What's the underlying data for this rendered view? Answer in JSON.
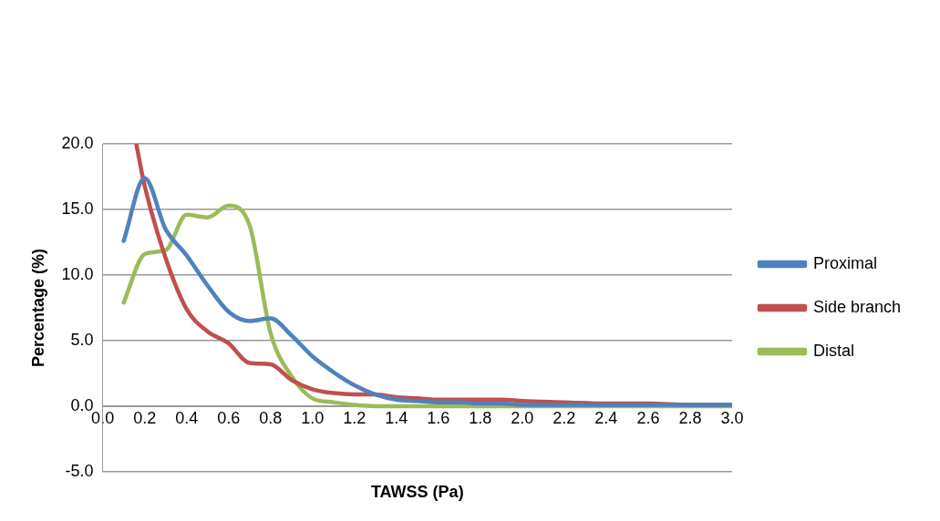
{
  "chart_data": {
    "type": "line",
    "xlabel": "TAWSS (Pa)",
    "ylabel": "Percentage (%)",
    "x": [
      0.1,
      0.2,
      0.3,
      0.4,
      0.5,
      0.6,
      0.7,
      0.8,
      0.9,
      1.0,
      1.1,
      1.2,
      1.3,
      1.4,
      1.5,
      1.6,
      1.7,
      1.8,
      1.9,
      2.0,
      2.2,
      2.4,
      2.6,
      2.8,
      3.0
    ],
    "series": [
      {
        "name": "Proximal",
        "color": "#4f81bd",
        "values": [
          12.6,
          17.4,
          13.5,
          11.5,
          9.2,
          7.2,
          6.5,
          6.7,
          5.4,
          3.8,
          2.6,
          1.6,
          0.9,
          0.5,
          0.4,
          0.3,
          0.3,
          0.2,
          0.2,
          0.1,
          0.1,
          0.1,
          0.1,
          0.1,
          0.1
        ]
      },
      {
        "name": "Side branch",
        "color": "#c0504d",
        "x": [
          0.16,
          0.2,
          0.3,
          0.4,
          0.5,
          0.6,
          0.7,
          0.8,
          0.9,
          1.0,
          1.1,
          1.2,
          1.3,
          1.4,
          1.5,
          1.6,
          1.7,
          1.8,
          1.9,
          2.0,
          2.2,
          2.4,
          2.6,
          2.8,
          3.0
        ],
        "values": [
          20,
          16.8,
          11.3,
          7.4,
          5.7,
          4.8,
          3.3,
          3.2,
          2.0,
          1.3,
          1.0,
          0.9,
          0.9,
          0.7,
          0.6,
          0.5,
          0.5,
          0.5,
          0.5,
          0.4,
          0.3,
          0.2,
          0.2,
          0.1,
          0.1
        ]
      },
      {
        "name": "Distal",
        "color": "#9bbb59",
        "values": [
          7.9,
          11.6,
          11.9,
          14.6,
          14.4,
          15.3,
          13.8,
          5.6,
          2.3,
          0.6,
          0.3,
          0.1,
          0,
          0,
          0,
          0,
          0,
          0,
          0,
          0,
          0,
          0,
          0,
          0,
          0
        ]
      }
    ],
    "xlim": [
      0,
      3
    ],
    "xticks": [
      {
        "value": 0,
        "label": "0.0"
      },
      {
        "value": 0.2,
        "label": "0.2"
      },
      {
        "value": 0.4,
        "label": "0.4"
      },
      {
        "value": 0.6,
        "label": "0.6"
      },
      {
        "value": 0.8,
        "label": "0.8"
      },
      {
        "value": 1,
        "label": "1.0"
      },
      {
        "value": 1.2,
        "label": "1.2"
      },
      {
        "value": 1.4,
        "label": "1.4"
      },
      {
        "value": 1.6,
        "label": "1.6"
      },
      {
        "value": 1.8,
        "label": "1.8"
      },
      {
        "value": 2,
        "label": "2.0"
      },
      {
        "value": 2.2,
        "label": "2.2"
      },
      {
        "value": 2.4,
        "label": "2.4"
      },
      {
        "value": 2.6,
        "label": "2.6"
      },
      {
        "value": 2.8,
        "label": "2.8"
      },
      {
        "value": 3,
        "label": "3.0"
      }
    ],
    "ylim": [
      -5,
      20
    ],
    "yticks": [
      {
        "value": -5,
        "label": "-5.0"
      },
      {
        "value": 0,
        "label": "0.0"
      },
      {
        "value": 5,
        "label": "5.0"
      },
      {
        "value": 10,
        "label": "10.0"
      },
      {
        "value": 15,
        "label": "15.0"
      },
      {
        "value": 20,
        "label": "20.0"
      }
    ],
    "grid": "y",
    "legend": "right",
    "marker": "none",
    "line_style": "solid"
  }
}
